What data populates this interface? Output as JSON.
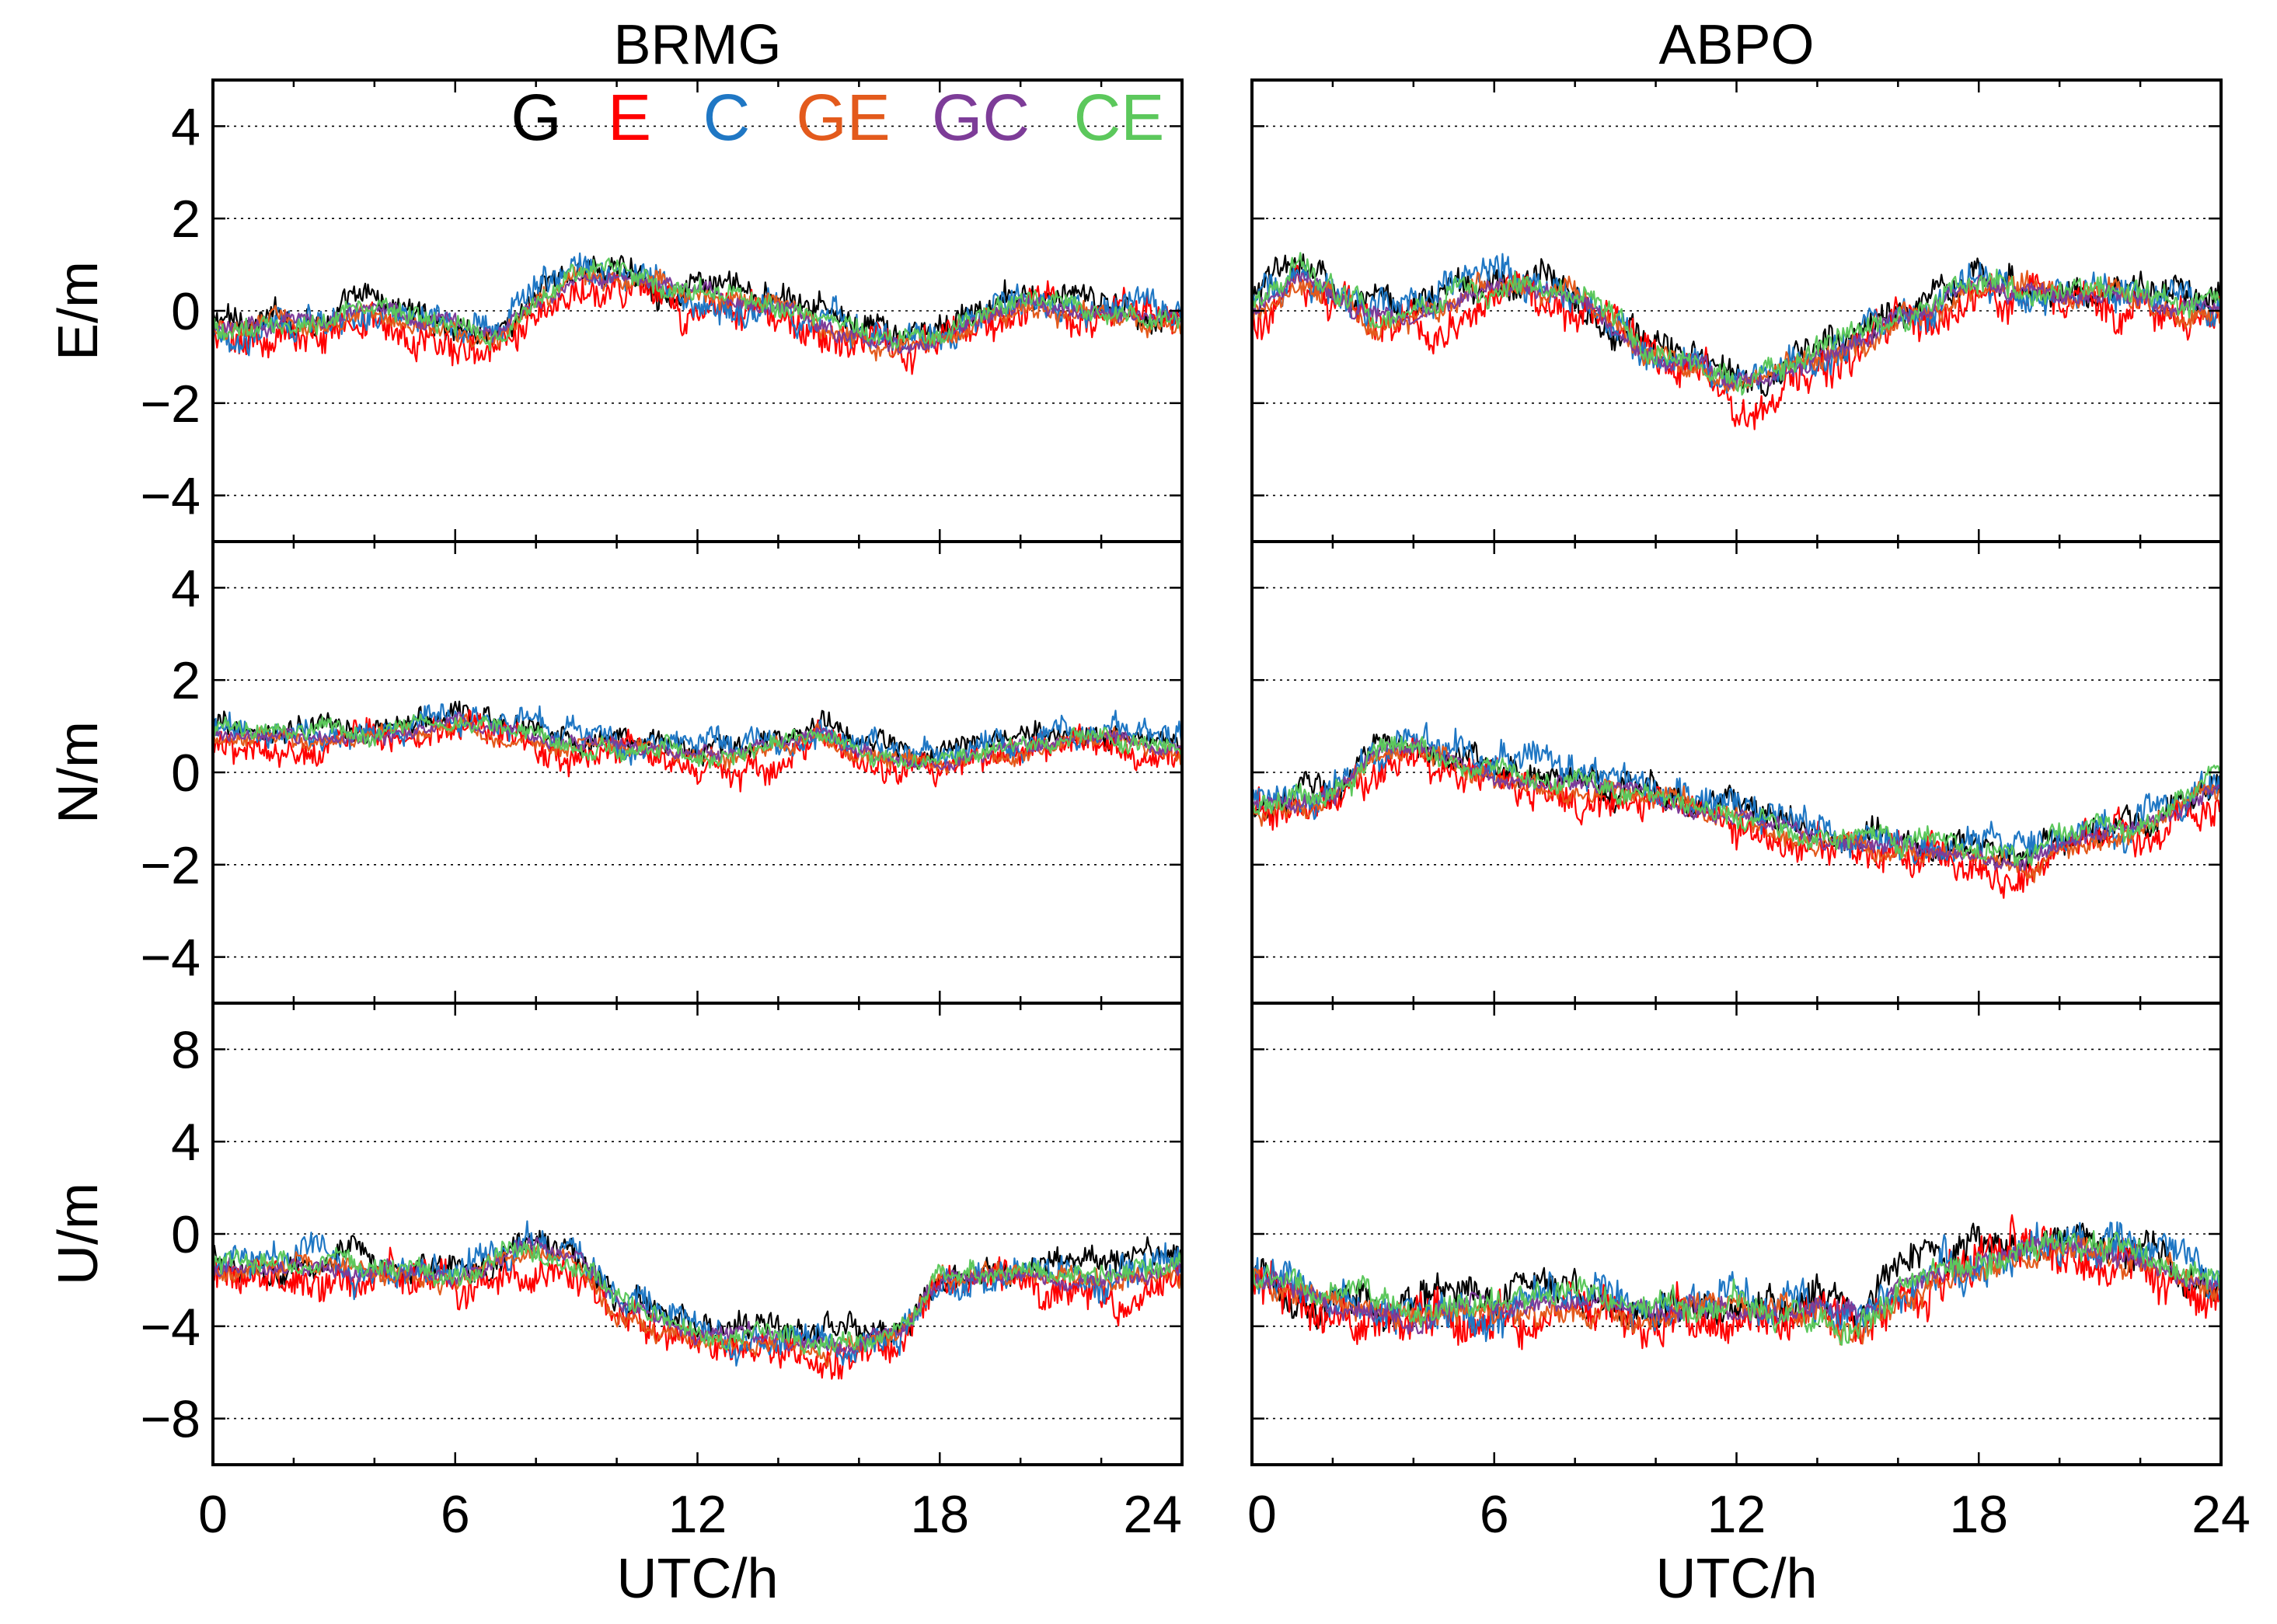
{
  "chart_data": {
    "type": "line",
    "xlabel": "UTC/h",
    "xlim": [
      0,
      24
    ],
    "xticks": [
      0,
      6,
      12,
      18,
      24
    ],
    "xtick_labels": [
      "0",
      "6",
      "12",
      "18",
      "24"
    ],
    "series_names": [
      "G",
      "E",
      "C",
      "GE",
      "GC",
      "CE"
    ],
    "colors": {
      "G": "#000000",
      "E": "#ff0000",
      "C": "#1f77c4",
      "GE": "#e35a1c",
      "GC": "#7d3c98",
      "CE": "#5cc85c"
    },
    "stations": [
      {
        "title": "BRMG",
        "panels": [
          {
            "component": "E",
            "ylabel": "E/m",
            "ylim": [
              -5,
              5
            ],
            "yticks": [
              -4,
              -2,
              0,
              2,
              4
            ],
            "ytick_labels": [
              "−4",
              "−2",
              "0",
              "2",
              "4"
            ],
            "approx_mean_curve": {
              "hours": [
                0,
                2,
                4,
                6,
                7,
                8,
                9,
                10,
                12,
                14,
                16,
                17,
                18,
                20,
                22,
                24
              ],
              "values": [
                -0.4,
                -0.3,
                0.0,
                -0.4,
                -0.6,
                0.1,
                0.8,
                0.8,
                0.3,
                0.0,
                -0.5,
                -0.8,
                -0.6,
                0.2,
                -0.1,
                -0.2
              ]
            },
            "noise_amplitude": 0.35
          },
          {
            "component": "N",
            "ylabel": "N/m",
            "ylim": [
              -5,
              5
            ],
            "yticks": [
              -4,
              -2,
              0,
              2,
              4
            ],
            "ytick_labels": [
              "−4",
              "−2",
              "0",
              "2",
              "4"
            ],
            "approx_mean_curve": {
              "hours": [
                0,
                2,
                4,
                6,
                8,
                10,
                12,
                13,
                15,
                16,
                18,
                20,
                22,
                24
              ],
              "values": [
                0.8,
                0.7,
                0.8,
                1.0,
                0.8,
                0.5,
                0.4,
                0.3,
                0.9,
                0.4,
                0.2,
                0.6,
                0.8,
                0.5
              ]
            },
            "noise_amplitude": 0.3
          },
          {
            "component": "U",
            "ylabel": "U/m",
            "ylim": [
              -10,
              10
            ],
            "yticks": [
              -8,
              -4,
              0,
              4,
              8
            ],
            "ytick_labels": [
              "−8",
              "−4",
              "0",
              "4",
              "8"
            ],
            "approx_mean_curve": {
              "hours": [
                0,
                2,
                4,
                6,
                8,
                9,
                10,
                12,
                14,
                15,
                17,
                18,
                20,
                22,
                24
              ],
              "values": [
                -1.5,
                -1.5,
                -1.5,
                -2.0,
                -0.5,
                -1.0,
                -3.0,
                -4.5,
                -4.5,
                -5.0,
                -4.5,
                -2.0,
                -1.5,
                -2.0,
                -1.5
              ]
            },
            "noise_amplitude": 0.7
          }
        ]
      },
      {
        "title": "ABPO",
        "panels": [
          {
            "component": "E",
            "ylabel": "E/m",
            "ylim": [
              -5,
              5
            ],
            "yticks": [
              -4,
              -2,
              0,
              2,
              4
            ],
            "ytick_labels": [
              "−4",
              "−2",
              "0",
              "2",
              "4"
            ],
            "approx_mean_curve": {
              "hours": [
                0,
                1,
                3,
                4,
                6,
                8,
                9,
                10,
                11,
                12,
                13,
                14,
                15,
                16,
                18,
                20,
                22,
                24
              ],
              "values": [
                0.0,
                0.8,
                -0.2,
                0.0,
                0.5,
                0.4,
                -0.3,
                -1.0,
                -1.2,
                -1.6,
                -1.5,
                -1.0,
                -0.7,
                -0.2,
                0.5,
                0.3,
                0.3,
                0.0
              ]
            },
            "noise_amplitude": 0.4
          },
          {
            "component": "N",
            "ylabel": "N/m",
            "ylim": [
              -5,
              5
            ],
            "yticks": [
              -4,
              -2,
              0,
              2,
              4
            ],
            "ytick_labels": [
              "−4",
              "−2",
              "0",
              "2",
              "4"
            ],
            "approx_mean_curve": {
              "hours": [
                0,
                2,
                3,
                4,
                6,
                8,
                10,
                12,
                14,
                16,
                18,
                19,
                20,
                22,
                24
              ],
              "values": [
                -0.8,
                -0.6,
                0.3,
                0.5,
                0.0,
                -0.3,
                -0.5,
                -1.0,
                -1.5,
                -1.6,
                -1.8,
                -2.0,
                -1.5,
                -1.2,
                -0.3
              ]
            },
            "noise_amplitude": 0.35
          },
          {
            "component": "U",
            "ylabel": "U/m",
            "ylim": [
              -10,
              10
            ],
            "yticks": [
              -8,
              -4,
              0,
              4,
              8
            ],
            "ytick_labels": [
              "−8",
              "−4",
              "0",
              "4",
              "8"
            ],
            "approx_mean_curve": {
              "hours": [
                0,
                2,
                4,
                6,
                8,
                10,
                12,
                14,
                15,
                16,
                18,
                20,
                22,
                24
              ],
              "values": [
                -2.0,
                -3.0,
                -3.5,
                -3.0,
                -3.0,
                -3.5,
                -3.0,
                -3.5,
                -4.0,
                -2.5,
                -1.0,
                -0.5,
                -1.0,
                -2.5
              ]
            },
            "noise_amplitude": 0.9
          }
        ]
      }
    ]
  }
}
